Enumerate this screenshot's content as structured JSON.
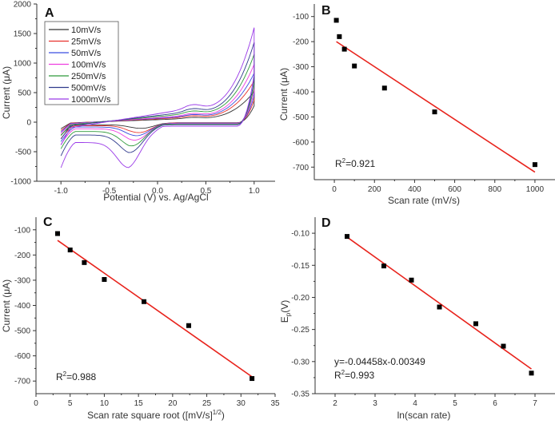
{
  "chart_data": [
    {
      "panel": "A",
      "type": "line",
      "title": "",
      "xlabel": "Potential (V) vs. Ag/AgCl",
      "ylabel": "Current (μA)",
      "xlim": [
        -1.25,
        1.25
      ],
      "ylim": [
        -1000,
        2000
      ],
      "xticks": [
        -1.0,
        -0.5,
        0.0,
        0.5,
        1.0
      ],
      "xtick_labels": [
        "-1.0",
        "-0.5",
        "0.0",
        "0.5",
        "1.0"
      ],
      "yticks": [
        -1000,
        -500,
        0,
        500,
        1000,
        1500,
        2000
      ],
      "ytick_labels": [
        "-1000",
        "-500",
        "0",
        "500",
        "1000",
        "1500",
        "2000"
      ],
      "legend_position": "top-left",
      "series": [
        {
          "name": "10mV/s",
          "color": "#333333",
          "peak_cathodic": [
            -0.15,
            -110
          ],
          "start": -220,
          "end_anodic": 520,
          "plateau_anodic": 60,
          "plateau_cathodic": -60
        },
        {
          "name": "25mV/s",
          "color": "#e8322d",
          "peak_cathodic": [
            -0.18,
            -180
          ],
          "start": -280,
          "end_anodic": 700,
          "plateau_anodic": 80,
          "plateau_cathodic": -80
        },
        {
          "name": "50mV/s",
          "color": "#3a4ee0",
          "peak_cathodic": [
            -0.2,
            -230
          ],
          "start": -330,
          "end_anodic": 830,
          "plateau_anodic": 95,
          "plateau_cathodic": -110
        },
        {
          "name": "100mV/s",
          "color": "#ee3fe0",
          "peak_cathodic": [
            -0.22,
            -300
          ],
          "start": -380,
          "end_anodic": 980,
          "plateau_anodic": 110,
          "plateau_cathodic": -150
        },
        {
          "name": "250mV/s",
          "color": "#2e9a3a",
          "peak_cathodic": [
            -0.25,
            -385
          ],
          "start": -450,
          "end_anodic": 1150,
          "plateau_anodic": 140,
          "plateau_cathodic": -210
        },
        {
          "name": "500mV/s",
          "color": "#2f3a8c",
          "peak_cathodic": [
            -0.27,
            -480
          ],
          "start": -570,
          "end_anodic": 1350,
          "plateau_anodic": 170,
          "plateau_cathodic": -290
        },
        {
          "name": "1000mV/s",
          "color": "#9a3ae8",
          "peak_cathodic": [
            -0.3,
            -700
          ],
          "start": -770,
          "end_anodic": 1600,
          "plateau_anodic": 220,
          "plateau_cathodic": -460
        }
      ]
    },
    {
      "panel": "B",
      "type": "scatter",
      "xlabel": "Scan rate (mV/s)",
      "ylabel": "Current (μA)",
      "xlim": [
        -100,
        1100
      ],
      "ylim": [
        -750,
        -50
      ],
      "xticks": [
        0,
        200,
        400,
        600,
        800,
        1000
      ],
      "yticks": [
        -100,
        -200,
        -300,
        -400,
        -500,
        -600,
        -700
      ],
      "x": [
        10,
        25,
        50,
        100,
        250,
        500,
        1000
      ],
      "y": [
        -115,
        -180,
        -230,
        -297,
        -385,
        -480,
        -690
      ],
      "fit": {
        "x": [
          10,
          1000
        ],
        "y": [
          -200,
          -720
        ],
        "color": "#e8231c"
      },
      "annotation": {
        "r2_prefix": "R",
        "r2_sup": "2",
        "r2_value": "=0.921"
      }
    },
    {
      "panel": "C",
      "type": "scatter",
      "xlabel_main": "Scan rate square root ([mV/s]",
      "xlabel_sup": "1/2",
      "xlabel_end": ")",
      "ylabel": "Current (μA)",
      "xlim": [
        0,
        35
      ],
      "ylim": [
        -750,
        -50
      ],
      "xticks": [
        0,
        5,
        10,
        15,
        20,
        25,
        30,
        35
      ],
      "yticks": [
        -100,
        -200,
        -300,
        -400,
        -500,
        -600,
        -700
      ],
      "x": [
        3.16,
        5.0,
        7.07,
        10.0,
        15.81,
        22.36,
        31.62
      ],
      "y": [
        -115,
        -180,
        -230,
        -297,
        -385,
        -480,
        -690
      ],
      "fit": {
        "x": [
          3.16,
          31.62
        ],
        "y": [
          -142,
          -683
        ],
        "color": "#e8231c"
      },
      "annotation": {
        "r2_prefix": "R",
        "r2_sup": "2",
        "r2_value": "=0.988"
      }
    },
    {
      "panel": "D",
      "type": "scatter",
      "xlabel": "ln(scan rate)",
      "ylabel_main": "E",
      "ylabel_sub": "p",
      "ylabel_end": "(V)",
      "xlim": [
        1.5,
        7.5
      ],
      "ylim": [
        -0.35,
        -0.075
      ],
      "xticks": [
        2,
        3,
        4,
        5,
        6,
        7
      ],
      "yticks": [
        -0.1,
        -0.15,
        -0.2,
        -0.25,
        -0.3,
        -0.35
      ],
      "ytick_labels": [
        "-0.10",
        "-0.15",
        "-0.20",
        "-0.25",
        "-0.30",
        "-0.35"
      ],
      "x": [
        2.3,
        3.22,
        3.91,
        4.61,
        5.52,
        6.21,
        6.91
      ],
      "y": [
        -0.105,
        -0.151,
        -0.173,
        -0.215,
        -0.241,
        -0.276,
        -0.318
      ],
      "fit": {
        "x": [
          2.3,
          6.91
        ],
        "y": [
          -0.106,
          -0.3116
        ],
        "color": "#e8231c"
      },
      "annotation": {
        "equation": "y=-0.04458x-0.00349",
        "r2_prefix": "R",
        "r2_sup": "2",
        "r2_value": "=0.993"
      }
    }
  ]
}
